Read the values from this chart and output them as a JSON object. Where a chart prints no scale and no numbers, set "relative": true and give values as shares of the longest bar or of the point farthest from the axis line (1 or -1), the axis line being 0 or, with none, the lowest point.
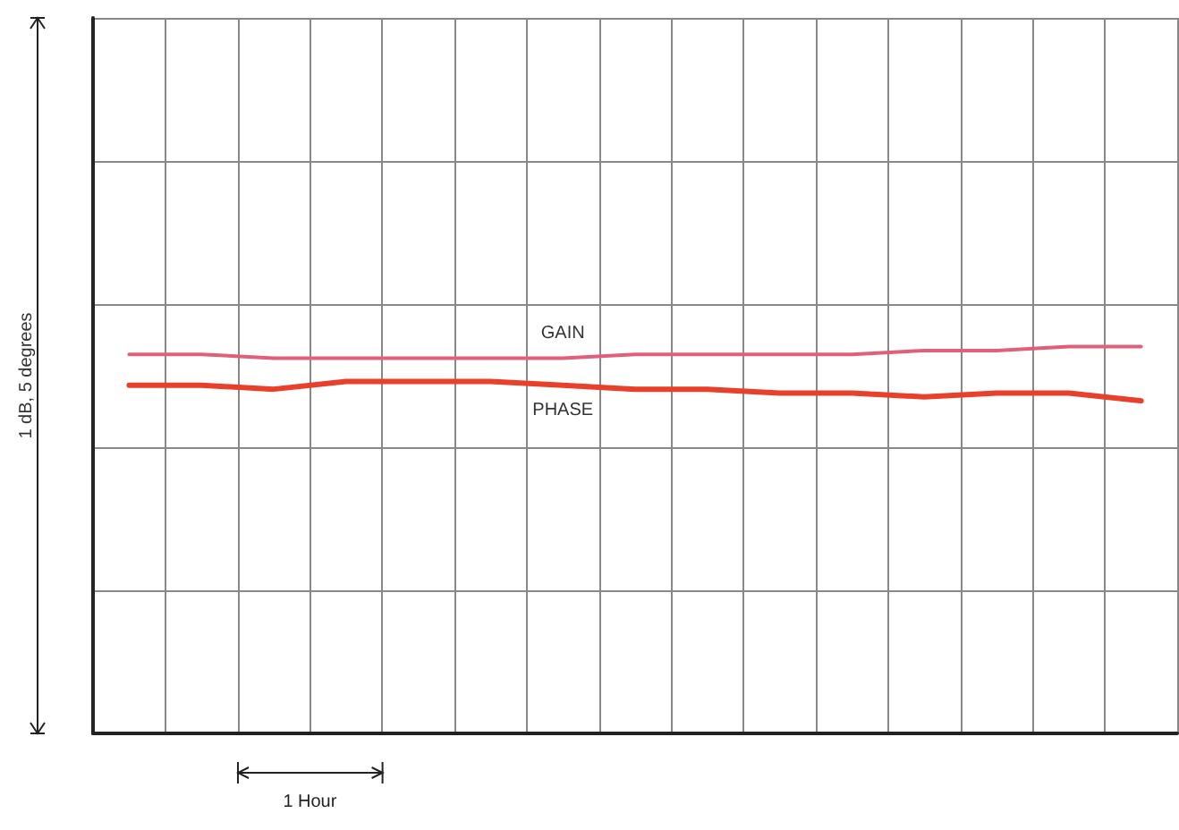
{
  "chart_data": {
    "type": "line",
    "ylabel": "1 dB, 5 degrees",
    "annotations": [
      "1 Hour"
    ],
    "relative": true,
    "categories": [
      null,
      null,
      null,
      null,
      null,
      null,
      null,
      null,
      null,
      null,
      null,
      null,
      null,
      null,
      null
    ],
    "grid": true,
    "legend": false,
    "marker": "none",
    "line_style": "solid",
    "series": [
      {
        "name": "GAIN",
        "color": "#e0607a",
        "values": [
          0.98,
          0.98,
          0.97,
          0.97,
          0.97,
          0.97,
          0.97,
          0.98,
          0.98,
          0.98,
          0.98,
          0.99,
          0.99,
          1.0,
          1.0
        ]
      },
      {
        "name": "PHASE",
        "color": "#e8402a",
        "values": [
          0.9,
          0.9,
          0.89,
          0.91,
          0.91,
          0.91,
          0.9,
          0.89,
          0.89,
          0.88,
          0.88,
          0.87,
          0.88,
          0.88,
          0.86
        ]
      }
    ]
  }
}
